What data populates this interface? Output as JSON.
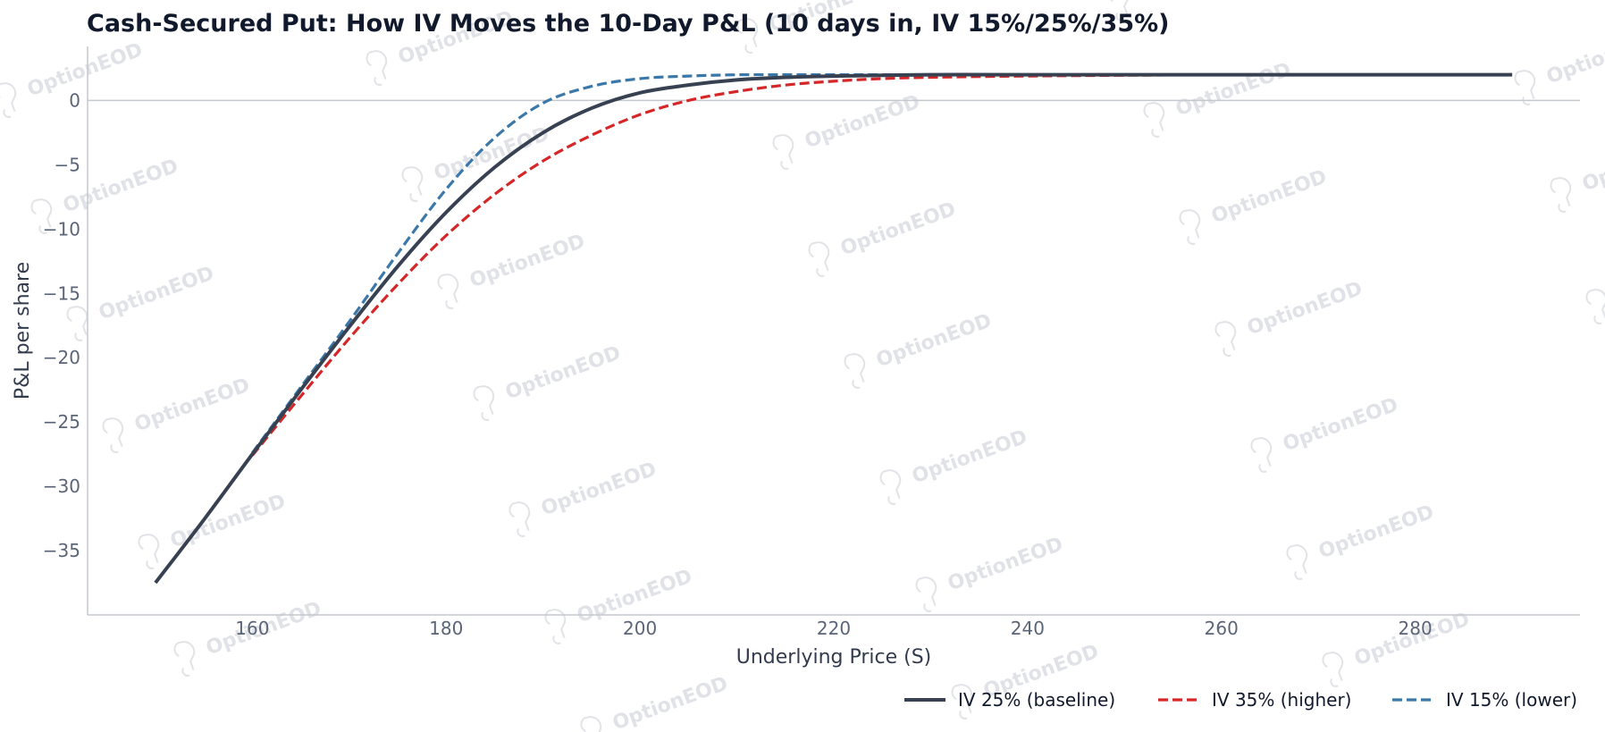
{
  "watermark": "OptionEOD",
  "chart_data": {
    "type": "line",
    "title": "Cash-Secured Put: How IV Moves the 10-Day P&L (10 days in, IV 15%/25%/35%)",
    "xlabel": "Underlying Price (S)",
    "ylabel": "P&L per share",
    "xlim": [
      143,
      297
    ],
    "ylim": [
      -40,
      4.2
    ],
    "xticks": [
      160,
      180,
      200,
      220,
      240,
      260,
      280
    ],
    "yticks": [
      0,
      -5,
      -10,
      -15,
      -20,
      -25,
      -30,
      -35
    ],
    "xtick_labels": [
      "160",
      "180",
      "200",
      "220",
      "240",
      "260",
      "280"
    ],
    "ytick_labels": [
      "0",
      "−5",
      "−10",
      "−15",
      "−20",
      "−25",
      "−30",
      "−35"
    ],
    "reference_line_y": 0,
    "grid": false,
    "legend_position": "bottom-right",
    "series": [
      {
        "name": "IV 25% (baseline)",
        "color": "#374151",
        "style": "solid",
        "x": [
          150,
          155,
          160,
          165,
          170,
          175,
          180,
          185,
          190,
          195,
          200,
          205,
          210,
          215,
          220,
          230,
          240,
          260,
          280,
          290
        ],
        "y": [
          -37.5,
          -32.6,
          -27.5,
          -22.5,
          -17.6,
          -12.9,
          -8.7,
          -5.2,
          -2.5,
          -0.6,
          0.6,
          1.2,
          1.6,
          1.8,
          1.9,
          2.0,
          2.0,
          2.0,
          2.0,
          2.0
        ]
      },
      {
        "name": "IV 35% (higher)",
        "color": "#d62728",
        "style": "dashed",
        "x": [
          160,
          165,
          170,
          175,
          180,
          185,
          190,
          195,
          200,
          205,
          210,
          215,
          220,
          225,
          230,
          240,
          260,
          280,
          290
        ],
        "y": [
          -27.6,
          -23.0,
          -18.5,
          -14.3,
          -10.5,
          -7.3,
          -4.7,
          -2.7,
          -1.1,
          0.0,
          0.7,
          1.2,
          1.5,
          1.7,
          1.8,
          1.9,
          2.0,
          2.0,
          2.0
        ]
      },
      {
        "name": "IV 15% (lower)",
        "color": "#3b78aa",
        "style": "dashed",
        "x": [
          160,
          165,
          170,
          175,
          180,
          185,
          190,
          195,
          200,
          205,
          210,
          215,
          220,
          230,
          240,
          260,
          280,
          290
        ],
        "y": [
          -27.4,
          -22.3,
          -17.2,
          -11.9,
          -6.9,
          -2.9,
          -0.2,
          1.1,
          1.7,
          1.9,
          2.0,
          2.0,
          2.0,
          2.0,
          2.0,
          2.0,
          2.0,
          2.0
        ]
      }
    ]
  }
}
